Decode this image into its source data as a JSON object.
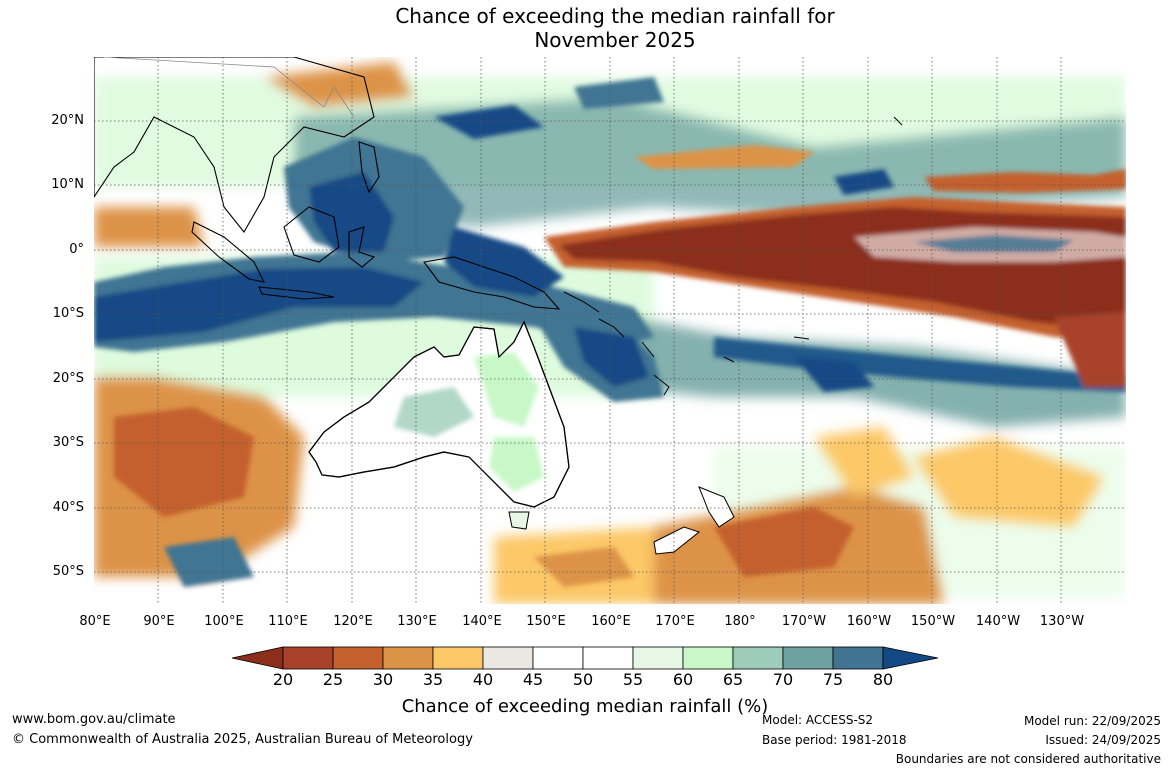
{
  "title": {
    "line1": "Chance of exceeding the median rainfall for",
    "line2": "November 2025"
  },
  "map": {
    "region": "Australia, Maritime Continent and tropical Pacific",
    "lat_labels": [
      "20°N",
      "10°N",
      "0°",
      "10°S",
      "20°S",
      "30°S",
      "40°S",
      "50°S"
    ],
    "lon_labels": [
      "80°E",
      "90°E",
      "100°E",
      "110°E",
      "120°E",
      "130°E",
      "140°E",
      "150°E",
      "160°E",
      "170°E",
      "180°",
      "170°W",
      "160°W",
      "150°W",
      "140°W",
      "130°W"
    ],
    "colors": {
      "lt20": "#8b2e1c",
      "b20_25": "#a8432a",
      "b25_30": "#c4612f",
      "b30_35": "#dd9346",
      "b35_40": "#fcc867",
      "b40_45": "#ebe8e3",
      "b45_55": "#ffffff",
      "b55_60": "#e6f7e6",
      "b60_65": "#c8f8c8",
      "b65_70": "#9dcdba",
      "b70_75": "#6ea2a0",
      "b75_80": "#417493",
      "gt80": "#134a85"
    }
  },
  "colorbar": {
    "ticks": [
      "20",
      "25",
      "30",
      "35",
      "40",
      "45",
      "50",
      "55",
      "60",
      "65",
      "70",
      "75",
      "80"
    ],
    "title": "Chance of exceeding median rainfall (%)",
    "colors": [
      "#8b2e1c",
      "#a8432a",
      "#c4612f",
      "#dd9346",
      "#fcc867",
      "#ebe8e3",
      "#ffffff",
      "#ffffff",
      "#e6f7e6",
      "#c8f8c8",
      "#9dcdba",
      "#6ea2a0",
      "#417493",
      "#134a85"
    ]
  },
  "footer": {
    "website": "www.bom.gov.au/climate",
    "copyright": "© Commonwealth of Australia 2025, Australian Bureau of Meteorology",
    "model": "Model: ACCESS-S2",
    "base_period": "Base period: 1981-2018",
    "model_run": "Model run: 22/09/2025",
    "issued": "Issued: 24/09/2025",
    "disclaimer": "Boundaries are not considered authoritative"
  }
}
